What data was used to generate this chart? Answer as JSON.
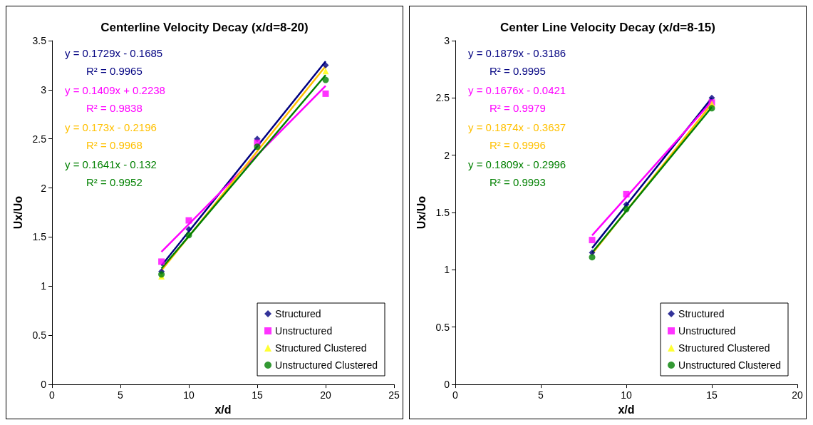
{
  "chart_data": [
    {
      "type": "scatter",
      "title": "Centerline Velocity Decay (x/d=8-20)",
      "xlabel": "x/d",
      "ylabel": "Ux/Uo",
      "x": [
        8,
        10,
        15,
        20
      ],
      "xlim": [
        0,
        25
      ],
      "xticks": [
        0,
        5,
        10,
        15,
        20,
        25
      ],
      "ylim": [
        0,
        3.5
      ],
      "yticks": [
        0,
        0.5,
        1,
        1.5,
        2,
        2.5,
        3,
        3.5
      ],
      "grid": false,
      "legend": "bottom right",
      "annotations": [
        "y = 0.1729x - 0.1685",
        "R² = 0.9965",
        "y = 0.1409x + 0.2238",
        "R² = 0.9838",
        "y = 0.173x - 0.2196",
        "R² = 0.9968",
        "y = 0.1641x - 0.132",
        "R² = 0.9952"
      ],
      "series": [
        {
          "name": "Structured",
          "color": "#000080",
          "marker": "diamond",
          "values": [
            1.15,
            1.58,
            2.5,
            3.25
          ]
        },
        {
          "name": "Unstructured",
          "color": "#ff00ff",
          "marker": "square",
          "values": [
            1.25,
            1.67,
            2.46,
            2.96
          ]
        },
        {
          "name": "Structured Clustered",
          "color": "#ffff00",
          "marker": "triangle",
          "values": [
            1.1,
            null,
            null,
            3.19
          ]
        },
        {
          "name": "Unstructured Clustered",
          "color": "#008000",
          "marker": "circle",
          "values": [
            1.12,
            1.52,
            2.42,
            3.1
          ]
        },
        {
          "type": "line",
          "color": "#000080",
          "marker": "none",
          "x": [
            8,
            20
          ],
          "values": [
            1.21,
            3.29
          ]
        },
        {
          "type": "line",
          "color": "#ff00ff",
          "marker": "none",
          "x": [
            8,
            20
          ],
          "values": [
            1.35,
            3.04
          ]
        },
        {
          "type": "line",
          "color": "#ffc000",
          "marker": "none",
          "x": [
            8,
            20
          ],
          "values": [
            1.16,
            3.24
          ]
        },
        {
          "type": "line",
          "color": "#008000",
          "marker": "none",
          "x": [
            8,
            20
          ],
          "values": [
            1.18,
            3.15
          ]
        }
      ]
    },
    {
      "type": "scatter",
      "title": "Center Line Velocity Decay (x/d=8-15)",
      "xlabel": "x/d",
      "ylabel": "Ux/Uo",
      "x": [
        8,
        10,
        15
      ],
      "xlim": [
        0,
        20
      ],
      "xticks": [
        0,
        5,
        10,
        15,
        20
      ],
      "ylim": [
        0,
        3
      ],
      "yticks": [
        0,
        0.5,
        1,
        1.5,
        2,
        2.5,
        3
      ],
      "grid": false,
      "legend": "bottom right",
      "annotations": [
        "y = 0.1879x - 0.3186",
        "R² = 0.9995",
        "y = 0.1676x - 0.0421",
        "R² = 0.9979",
        "y = 0.1874x - 0.3637",
        "R² = 0.9996",
        "y = 0.1809x - 0.2996",
        "R² = 0.9993"
      ],
      "series": [
        {
          "name": "Structured",
          "color": "#000080",
          "marker": "diamond",
          "values": [
            1.15,
            1.57,
            2.5
          ]
        },
        {
          "name": "Unstructured",
          "color": "#ff00ff",
          "marker": "square",
          "values": [
            1.26,
            1.66,
            2.46
          ]
        },
        {
          "name": "Structured Clustered",
          "color": "#ffff00",
          "marker": "triangle",
          "values": [
            null,
            null,
            2.45
          ]
        },
        {
          "name": "Unstructured Clustered",
          "color": "#008000",
          "marker": "circle",
          "values": [
            1.11,
            1.53,
            2.41
          ]
        },
        {
          "type": "line",
          "color": "#000080",
          "marker": "none",
          "x": [
            8,
            15
          ],
          "values": [
            1.19,
            2.5
          ]
        },
        {
          "type": "line",
          "color": "#ff00ff",
          "marker": "none",
          "x": [
            8,
            15
          ],
          "values": [
            1.3,
            2.47
          ]
        },
        {
          "type": "line",
          "color": "#ffc000",
          "marker": "none",
          "x": [
            8,
            15
          ],
          "values": [
            1.14,
            2.45
          ]
        },
        {
          "type": "line",
          "color": "#008000",
          "marker": "none",
          "x": [
            8,
            15
          ],
          "values": [
            1.15,
            2.42
          ]
        }
      ]
    }
  ]
}
